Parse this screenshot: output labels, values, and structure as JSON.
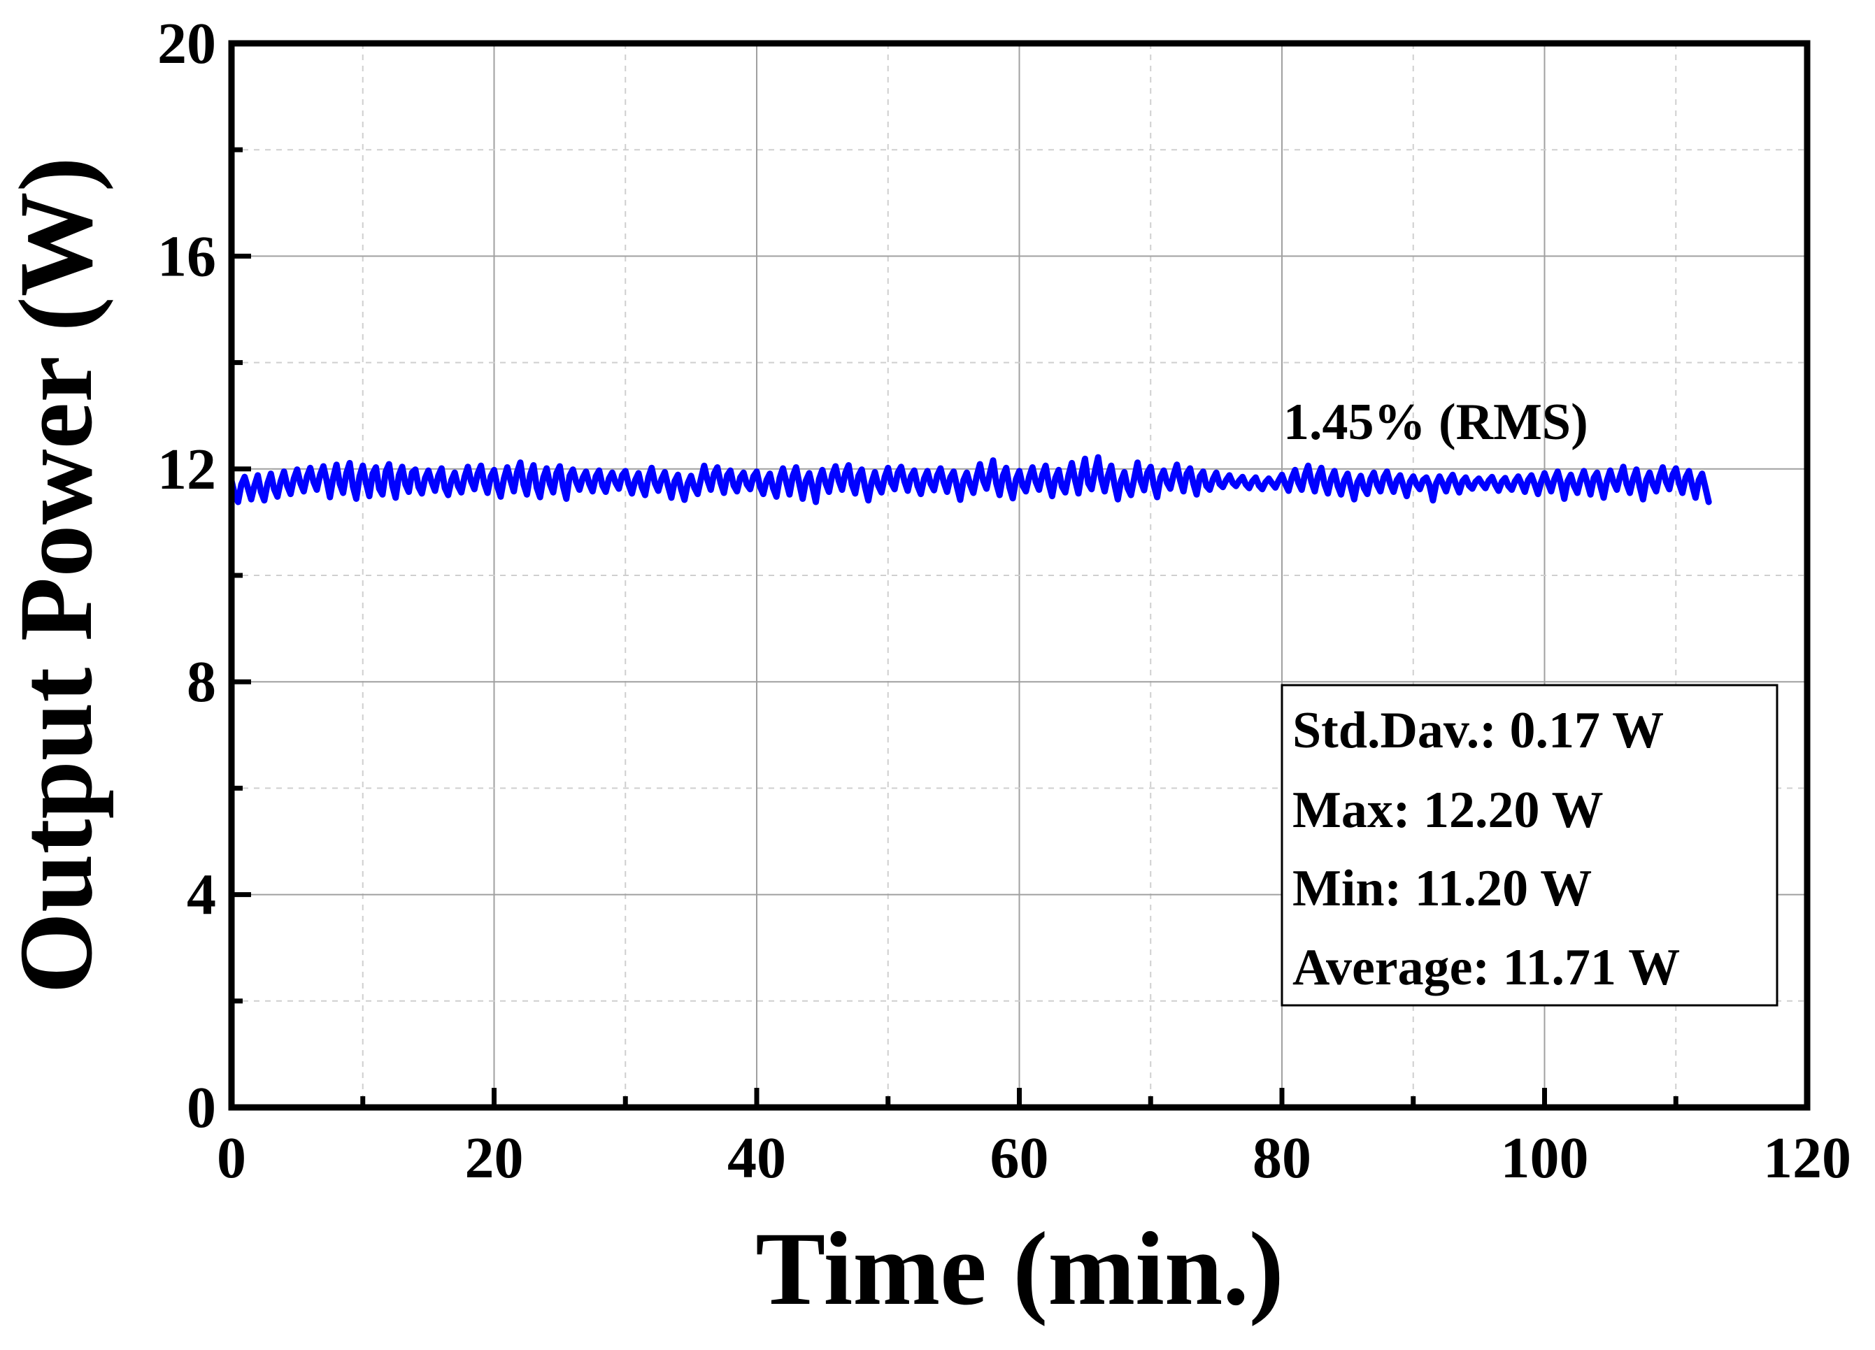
{
  "chart_data": {
    "type": "line",
    "title": "",
    "xlabel": "Time (min.)",
    "ylabel": "Output Power (W)",
    "xlim": [
      0,
      120
    ],
    "ylim": [
      0,
      20
    ],
    "x_ticks": [
      0,
      20,
      40,
      60,
      80,
      100,
      120
    ],
    "y_ticks": [
      0,
      4,
      8,
      12,
      16,
      20
    ],
    "x_tick_labels": [
      "0",
      "20",
      "40",
      "60",
      "80",
      "100",
      "120"
    ],
    "y_tick_labels": [
      "0",
      "4",
      "8",
      "12",
      "16",
      "20"
    ],
    "grid": true,
    "series_color": "#0000ff",
    "series": [
      {
        "name": "Output Power",
        "x_start": 0,
        "x_step": 0.25,
        "values": [
          11.78,
          11.52,
          11.38,
          11.71,
          11.85,
          11.64,
          11.43,
          11.69,
          11.88,
          11.57,
          11.41,
          11.73,
          11.91,
          11.62,
          11.48,
          11.77,
          11.95,
          11.68,
          11.53,
          11.82,
          11.99,
          11.73,
          11.58,
          11.86,
          12.02,
          11.76,
          11.61,
          11.89,
          12.05,
          11.78,
          11.47,
          11.84,
          12.08,
          11.72,
          11.55,
          11.92,
          12.11,
          11.67,
          11.44,
          11.86,
          12.06,
          11.74,
          11.49,
          11.91,
          12.03,
          11.63,
          11.52,
          11.95,
          12.09,
          11.69,
          11.46,
          11.88,
          12.04,
          11.71,
          11.57,
          11.93,
          11.99,
          11.66,
          11.54,
          11.83,
          11.97,
          11.75,
          11.59,
          11.87,
          12.01,
          11.64,
          11.51,
          11.79,
          11.93,
          11.68,
          11.56,
          11.85,
          12.04,
          11.77,
          11.62,
          11.91,
          12.06,
          11.73,
          11.55,
          11.86,
          11.98,
          11.67,
          11.48,
          11.82,
          12.03,
          11.79,
          11.58,
          11.94,
          12.12,
          11.71,
          11.52,
          11.89,
          12.07,
          11.65,
          11.47,
          11.84,
          12.01,
          11.72,
          11.56,
          11.92,
          12.05,
          11.68,
          11.44,
          11.87,
          11.99,
          11.76,
          11.61,
          11.83,
          11.95,
          11.72,
          11.58,
          11.86,
          11.97,
          11.69,
          11.57,
          11.82,
          11.93,
          11.74,
          11.63,
          11.88,
          11.96,
          11.71,
          11.54,
          11.79,
          11.92,
          11.66,
          11.51,
          11.84,
          12.02,
          11.73,
          11.59,
          11.81,
          11.94,
          11.68,
          11.46,
          11.77,
          11.89,
          11.62,
          11.42,
          11.73,
          11.87,
          11.65,
          11.53,
          11.81,
          12.06,
          11.79,
          11.61,
          11.91,
          12.03,
          11.74,
          11.55,
          11.88,
          11.97,
          11.69,
          11.58,
          11.84,
          11.93,
          11.71,
          11.62,
          11.86,
          11.95,
          11.67,
          11.53,
          11.79,
          11.91,
          11.64,
          11.48,
          11.83,
          12.01,
          11.76,
          11.52,
          11.87,
          12.03,
          11.72,
          11.44,
          11.78,
          11.92,
          11.66,
          11.38,
          11.81,
          11.98,
          11.73,
          11.57,
          11.89,
          12.05,
          11.78,
          11.61,
          11.92,
          12.07,
          11.71,
          11.54,
          11.87,
          11.99,
          11.66,
          11.41,
          11.75,
          11.94,
          11.69,
          11.56,
          11.85,
          12.02,
          11.74,
          11.62,
          11.93,
          12.04,
          11.77,
          11.59,
          11.86,
          11.97,
          11.68,
          11.53,
          11.82,
          11.96,
          11.72,
          11.6,
          11.88,
          12.01,
          11.75,
          11.57,
          11.84,
          11.95,
          11.67,
          11.42,
          11.79,
          11.93,
          11.71,
          11.55,
          11.86,
          12.09,
          11.78,
          11.63,
          11.91,
          12.16,
          11.73,
          11.51,
          11.87,
          12.02,
          11.66,
          11.45,
          11.81,
          11.96,
          11.69,
          11.58,
          11.85,
          12.03,
          11.76,
          11.61,
          11.89,
          12.06,
          11.72,
          11.49,
          11.83,
          11.98,
          11.67,
          11.56,
          11.88,
          12.11,
          11.79,
          11.54,
          11.92,
          12.19,
          11.73,
          11.62,
          11.95,
          12.22,
          11.81,
          11.58,
          11.87,
          12.06,
          11.71,
          11.43,
          11.78,
          11.94,
          11.64,
          11.51,
          11.82,
          12.12,
          11.77,
          11.6,
          11.93,
          12.04,
          11.69,
          11.47,
          11.84,
          11.97,
          11.74,
          11.63,
          11.89,
          12.08,
          11.79,
          11.58,
          11.91,
          12.01,
          11.73,
          11.52,
          11.86,
          11.95,
          11.68,
          11.61,
          11.81,
          11.93,
          11.72,
          11.66,
          11.79,
          11.88,
          11.74,
          11.68,
          11.78,
          11.85,
          11.71,
          11.64,
          11.77,
          11.84,
          11.69,
          11.62,
          11.75,
          11.82,
          11.73,
          11.65,
          11.78,
          11.89,
          11.72,
          11.59,
          11.83,
          11.98,
          11.74,
          11.61,
          11.89,
          12.06,
          11.76,
          11.58,
          11.87,
          12.02,
          11.71,
          11.54,
          11.82,
          11.96,
          11.68,
          11.52,
          11.79,
          11.91,
          11.66,
          11.43,
          11.75,
          11.87,
          11.64,
          11.53,
          11.81,
          11.93,
          11.7,
          11.58,
          11.84,
          11.95,
          11.72,
          11.57,
          11.79,
          11.88,
          11.68,
          11.49,
          11.76,
          11.86,
          11.71,
          11.62,
          11.79,
          11.84,
          11.69,
          11.41,
          11.73,
          11.86,
          11.72,
          11.58,
          11.79,
          11.89,
          11.71,
          11.56,
          11.77,
          11.84,
          11.69,
          11.63,
          11.76,
          11.82,
          11.72,
          11.64,
          11.78,
          11.85,
          11.7,
          11.59,
          11.76,
          11.83,
          11.68,
          11.61,
          11.77,
          11.86,
          11.72,
          11.57,
          11.79,
          11.88,
          11.71,
          11.53,
          11.76,
          11.92,
          11.74,
          11.58,
          11.81,
          11.95,
          11.72,
          11.44,
          11.77,
          11.89,
          11.68,
          11.55,
          11.8,
          11.96,
          11.74,
          11.52,
          11.83,
          11.93,
          11.69,
          11.46,
          11.78,
          11.97,
          11.75,
          11.61,
          11.86,
          12.04,
          11.72,
          11.55,
          11.82,
          11.99,
          11.67,
          11.43,
          11.79,
          11.93,
          11.71,
          11.58,
          11.86,
          12.03,
          11.76,
          11.62,
          11.89,
          12.01,
          11.73,
          11.55,
          11.84,
          11.96,
          11.69,
          11.46,
          11.79,
          11.91,
          11.65,
          11.38
        ]
      }
    ]
  },
  "annotation": {
    "rms_label": "1.45% (RMS)"
  },
  "stats_box": {
    "std_dev": "Std.Dav.: 0.17 W",
    "max": "Max: 12.20 W",
    "min": "Min: 11.20 W",
    "average": "Average: 11.71 W"
  }
}
